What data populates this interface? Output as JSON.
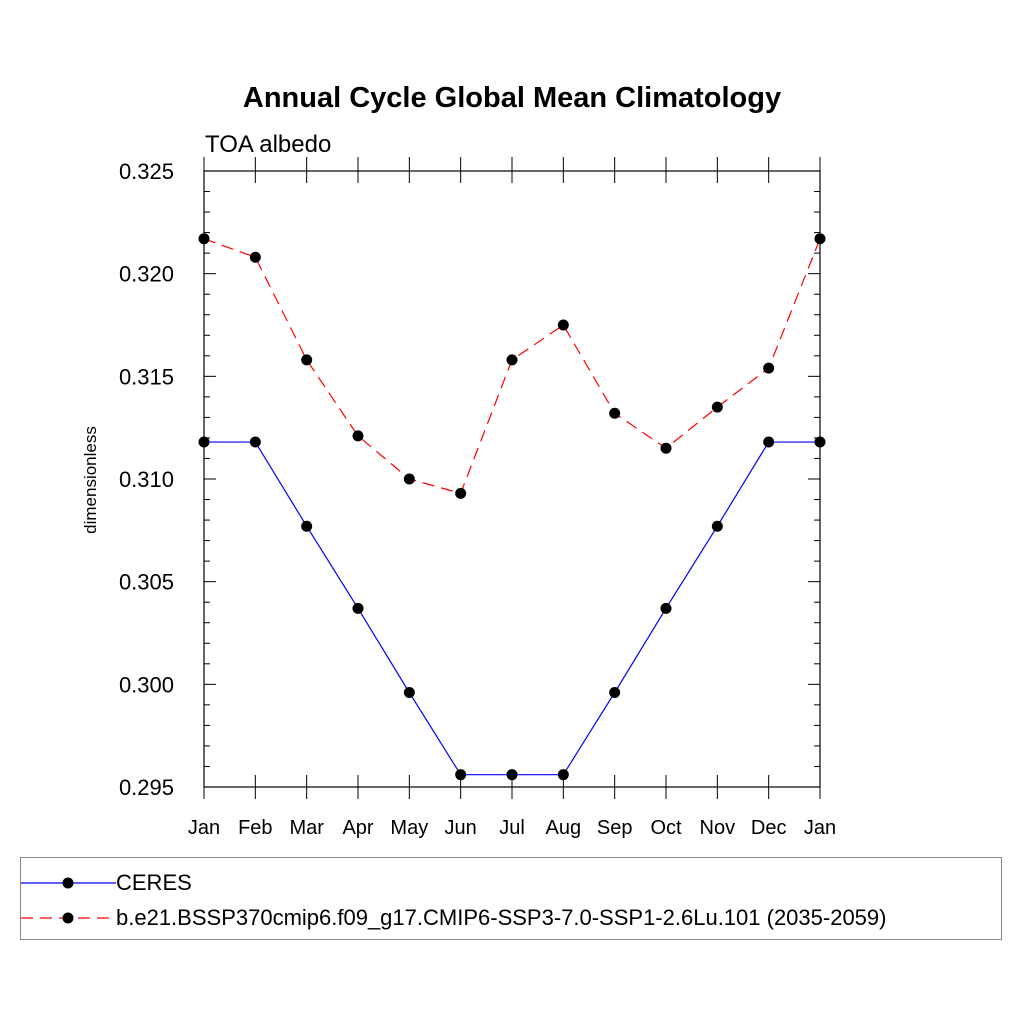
{
  "chart_data": {
    "type": "line",
    "title": "Annual Cycle Global Mean Climatology",
    "subtitle": "TOA albedo",
    "xlabel": "",
    "ylabel": "dimensionless",
    "categories": [
      "Jan",
      "Feb",
      "Mar",
      "Apr",
      "May",
      "Jun",
      "Jul",
      "Aug",
      "Sep",
      "Oct",
      "Nov",
      "Dec",
      "Jan"
    ],
    "ylim": [
      0.295,
      0.325
    ],
    "yticks": [
      "0.295",
      "0.300",
      "0.305",
      "0.310",
      "0.315",
      "0.320",
      "0.325"
    ],
    "grid": false,
    "legend_position": "bottom",
    "series": [
      {
        "name": "CERES",
        "color": "#0000ff",
        "line_style": "solid",
        "marker": "filled-circle",
        "values": [
          0.3118,
          0.3118,
          0.3077,
          0.3037,
          0.2996,
          0.2956,
          0.2956,
          0.2956,
          0.2996,
          0.3037,
          0.3077,
          0.3118,
          0.3118
        ]
      },
      {
        "name": "b.e21.BSSP370cmip6.f09_g17.CMIP6-SSP3-7.0-SSP1-2.6Lu.101 (2035-2059)",
        "color": "#ff0000",
        "line_style": "dashed",
        "marker": "filled-circle",
        "values": [
          0.3217,
          0.3208,
          0.3158,
          0.3121,
          0.31,
          0.3093,
          0.3158,
          0.3175,
          0.3132,
          0.3115,
          0.3135,
          0.3154,
          0.3217
        ]
      }
    ]
  }
}
